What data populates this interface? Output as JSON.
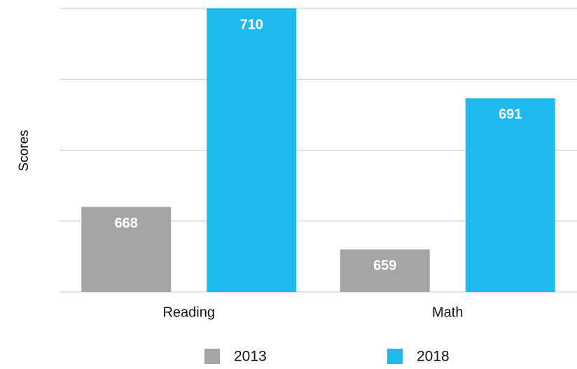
{
  "chart_data": {
    "type": "bar",
    "y_label": "Scores",
    "categories": [
      "Reading",
      "Math"
    ],
    "series": [
      {
        "name": "2013",
        "color": "#a5a5a5",
        "values": [
          668,
          659
        ]
      },
      {
        "name": "2018",
        "color": "#1eb9ee",
        "values": [
          710,
          691
        ]
      }
    ],
    "ylim": [
      650,
      710
    ],
    "yticks": [
      650,
      665,
      680,
      695,
      710
    ],
    "grid": true,
    "legend": "bottom"
  }
}
